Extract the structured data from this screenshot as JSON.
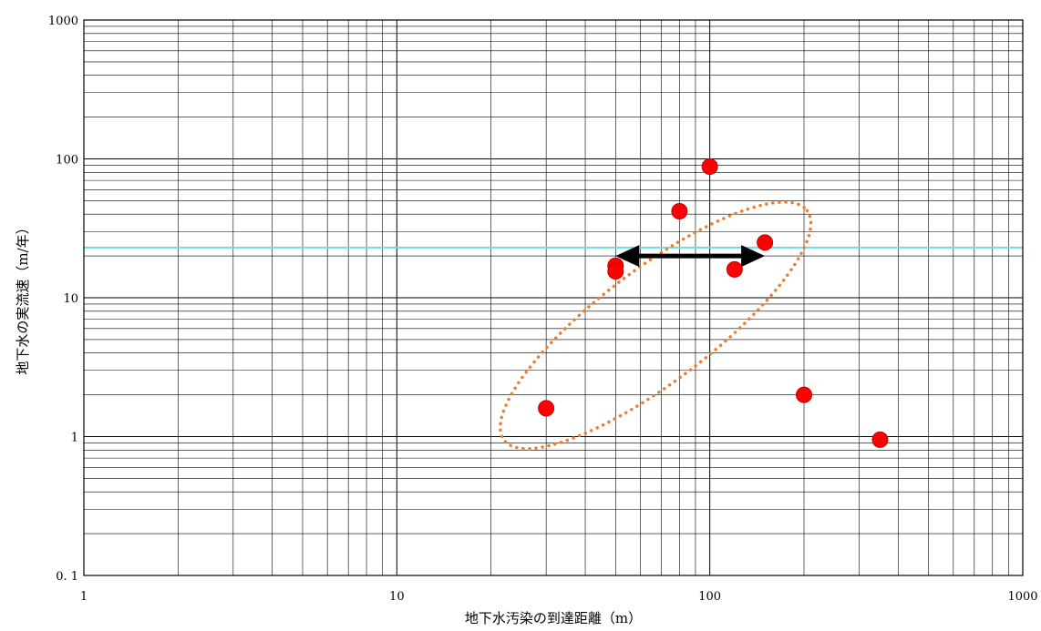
{
  "chart_data": {
    "type": "scatter",
    "title": "",
    "xlabel": "地下水汚染の到達距離（m）",
    "ylabel": "地下水の実流速（m/年）",
    "x_scale": "log",
    "y_scale": "log",
    "xlim": [
      1,
      1000
    ],
    "ylim": [
      0.1,
      1000
    ],
    "grid": true,
    "x_tick_labels": [
      "1",
      "10",
      "100",
      "1000"
    ],
    "y_tick_labels": [
      "0. 1",
      "1",
      "10",
      "100",
      "1000"
    ],
    "points": [
      {
        "x": 30,
        "y": 1.6
      },
      {
        "x": 50,
        "y": 17
      },
      {
        "x": 50,
        "y": 15.5
      },
      {
        "x": 80,
        "y": 42
      },
      {
        "x": 100,
        "y": 88
      },
      {
        "x": 120,
        "y": 16
      },
      {
        "x": 150,
        "y": 25
      },
      {
        "x": 200,
        "y": 2
      },
      {
        "x": 350,
        "y": 0.95
      }
    ],
    "reference_line_y": 23,
    "double_arrow": {
      "x_from": 50,
      "x_to": 150,
      "y": 20
    },
    "highlight_ellipse": {
      "x_start": 30,
      "y_start": 1.6,
      "x_end": 150,
      "y_end": 25,
      "note": "dotted ellipse enclosing points along the trend"
    },
    "colors": {
      "points": "#ff0000",
      "reference_line": "#66e0e6",
      "ellipse": "#ed7d31",
      "arrow": "#000000",
      "grid": "#000000"
    }
  }
}
